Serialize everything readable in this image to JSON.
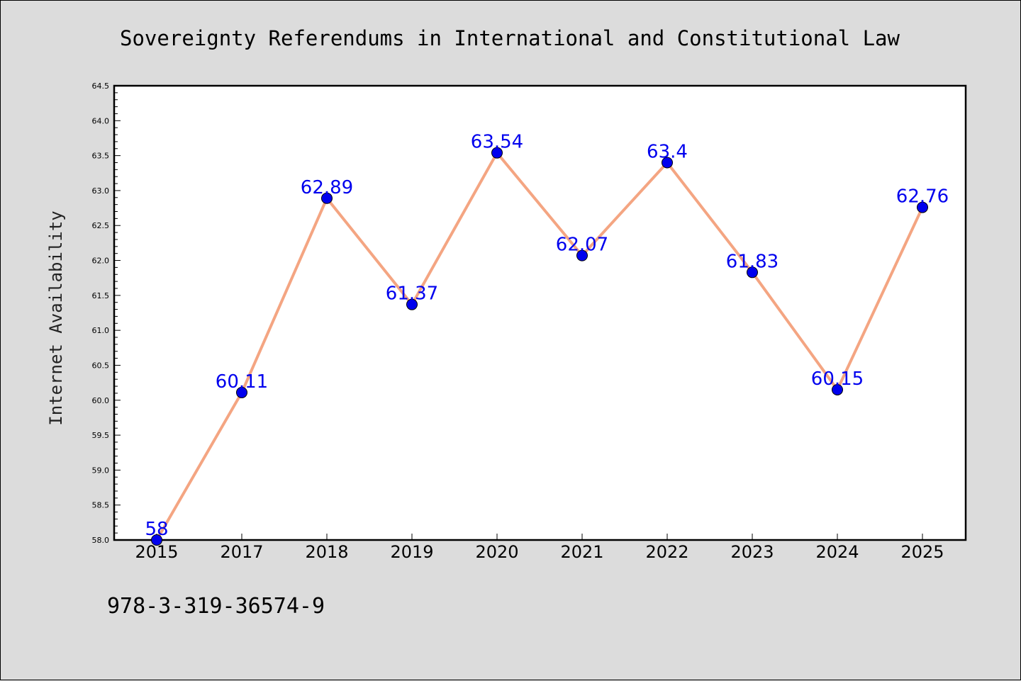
{
  "chart_data": {
    "type": "line",
    "title": "Sovereignty Referendums in International and Constitutional Law",
    "ylabel": "Internet Availability",
    "xlabel": "",
    "categories": [
      "2015",
      "2017",
      "2018",
      "2019",
      "2020",
      "2021",
      "2022",
      "2023",
      "2024",
      "2025"
    ],
    "values": [
      58,
      60.11,
      62.89,
      61.37,
      63.54,
      62.07,
      63.4,
      61.83,
      60.15,
      62.76
    ],
    "data_labels": [
      "58",
      "60.11",
      "62.89",
      "61.37",
      "63.54",
      "62.07",
      "63.4",
      "61.83",
      "60.15",
      "62.76"
    ],
    "ylim": [
      58.0,
      64.5
    ],
    "yticks": [
      "58.0",
      "58.5",
      "59.0",
      "59.5",
      "60.0",
      "60.5",
      "61.0",
      "61.5",
      "62.0",
      "62.5",
      "63.0",
      "63.5",
      "64.0",
      "64.5"
    ],
    "grid": false,
    "legend": "none",
    "colors": {
      "line": "#f4a582",
      "marker": "#0000ee",
      "label": "#0000ee",
      "plot_bg": "#ffffff",
      "page_bg": "#dcdcdc"
    }
  },
  "footer": {
    "isbn": "978-3-319-36574-9"
  }
}
